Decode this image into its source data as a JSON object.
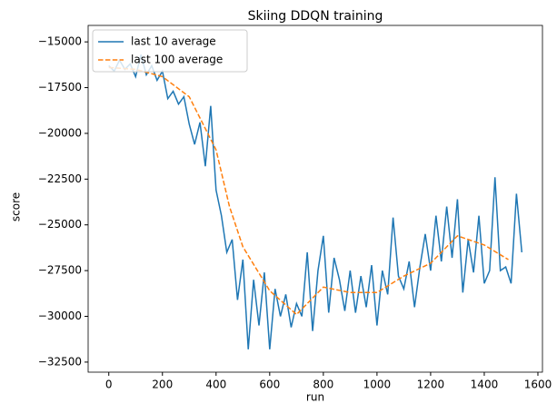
{
  "chart_data": {
    "type": "line",
    "title": "Skiing DDQN training",
    "xlabel": "run",
    "ylabel": "score",
    "xlim": [
      -77,
      1617
    ],
    "ylim": [
      -33050,
      -14100
    ],
    "xticks": [
      0,
      200,
      400,
      600,
      800,
      1000,
      1200,
      1400,
      1600
    ],
    "yticks": [
      {
        "value": -15000,
        "label": "−15000"
      },
      {
        "value": -17500,
        "label": "−17500"
      },
      {
        "value": -20000,
        "label": "−20000"
      },
      {
        "value": -22500,
        "label": "−22500"
      },
      {
        "value": -25000,
        "label": "−25000"
      },
      {
        "value": -27500,
        "label": "−27500"
      },
      {
        "value": -30000,
        "label": "−30000"
      },
      {
        "value": -32500,
        "label": "−32500"
      }
    ],
    "legend": "upper left",
    "series": [
      {
        "name": "last 10 average",
        "color": "#1f77b4",
        "dash": false,
        "x": [
          0,
          20,
          40,
          60,
          80,
          100,
          120,
          140,
          160,
          180,
          200,
          220,
          240,
          260,
          280,
          300,
          320,
          340,
          360,
          380,
          400,
          420,
          440,
          460,
          480,
          500,
          520,
          540,
          560,
          580,
          600,
          620,
          640,
          660,
          680,
          700,
          720,
          740,
          760,
          780,
          800,
          820,
          840,
          860,
          880,
          900,
          920,
          940,
          960,
          980,
          1000,
          1020,
          1040,
          1060,
          1080,
          1100,
          1120,
          1140,
          1160,
          1180,
          1200,
          1220,
          1240,
          1260,
          1280,
          1300,
          1320,
          1340,
          1360,
          1380,
          1400,
          1420,
          1440,
          1460,
          1480,
          1500,
          1520,
          1540
        ],
        "values": [
          -16300,
          -16600,
          -16000,
          -16500,
          -16200,
          -16900,
          -15700,
          -16800,
          -16300,
          -17100,
          -16600,
          -18100,
          -17700,
          -18400,
          -18000,
          -19500,
          -20600,
          -19400,
          -21800,
          -18500,
          -23100,
          -24500,
          -26500,
          -25800,
          -29100,
          -26900,
          -31800,
          -28000,
          -30500,
          -27600,
          -31800,
          -28500,
          -30000,
          -28800,
          -30600,
          -29300,
          -30000,
          -26500,
          -30800,
          -27500,
          -25600,
          -29800,
          -26800,
          -28000,
          -29700,
          -27500,
          -29800,
          -27800,
          -29500,
          -27200,
          -30500,
          -27500,
          -28800,
          -24600,
          -27800,
          -28500,
          -27000,
          -29500,
          -27300,
          -25500,
          -27500,
          -24500,
          -27000,
          -24000,
          -26800,
          -23600,
          -28700,
          -25800,
          -27600,
          -24500,
          -28200,
          -27500,
          -22400,
          -27500,
          -27300,
          -28200,
          -23300,
          -26500
        ]
      },
      {
        "name": "last 100 average",
        "color": "#ff7f0e",
        "dash": true,
        "x": [
          0,
          100,
          200,
          300,
          400,
          450,
          500,
          600,
          700,
          800,
          900,
          1000,
          1100,
          1200,
          1300,
          1400,
          1490
        ],
        "values": [
          -16400,
          -16500,
          -16900,
          -18000,
          -20900,
          -24000,
          -26200,
          -28600,
          -29900,
          -28400,
          -28700,
          -28700,
          -27800,
          -27100,
          -25600,
          -26100,
          -26900
        ]
      }
    ]
  }
}
